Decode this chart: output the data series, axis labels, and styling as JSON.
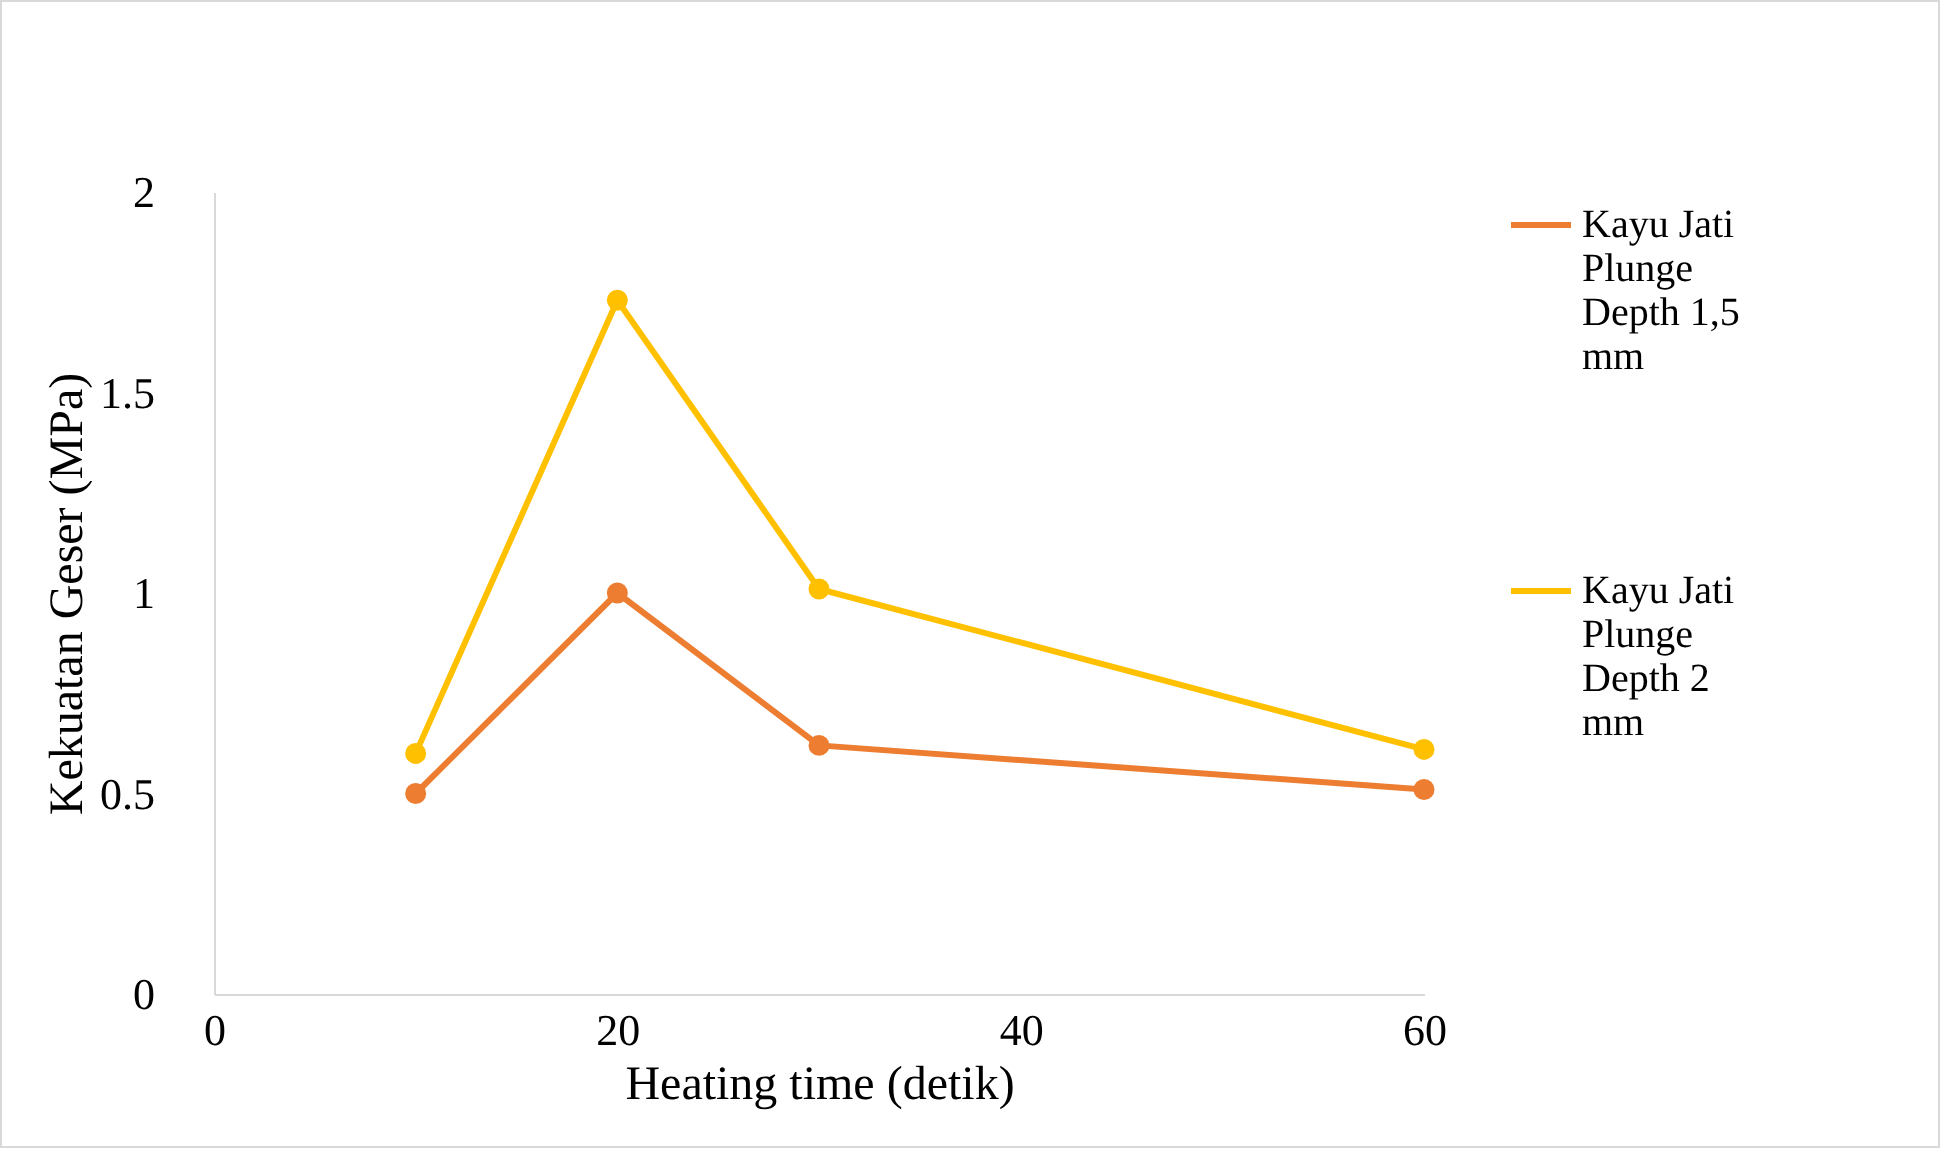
{
  "chart_data": {
    "type": "line",
    "xlabel": "Heating time (detik)",
    "ylabel": "Kekuatan Geser (MPa)",
    "x": [
      10,
      20,
      30,
      60
    ],
    "series": [
      {
        "name": "Kayu Jati Plunge Depth 1,5 mm",
        "color": "#ed7d31",
        "values": [
          0.5,
          1.0,
          0.62,
          0.51
        ]
      },
      {
        "name": "Kayu Jati Plunge Depth 2 mm",
        "color": "#ffc000",
        "values": [
          0.6,
          1.73,
          1.01,
          0.61
        ]
      }
    ],
    "xlim": [
      0,
      60
    ],
    "xticks": [
      0,
      20,
      40,
      60
    ],
    "ylim": [
      0,
      2
    ],
    "yticks": [
      0,
      0.5,
      1,
      1.5,
      2
    ],
    "grid": false,
    "legend": "right",
    "marker": "circle",
    "line_style": "solid"
  }
}
